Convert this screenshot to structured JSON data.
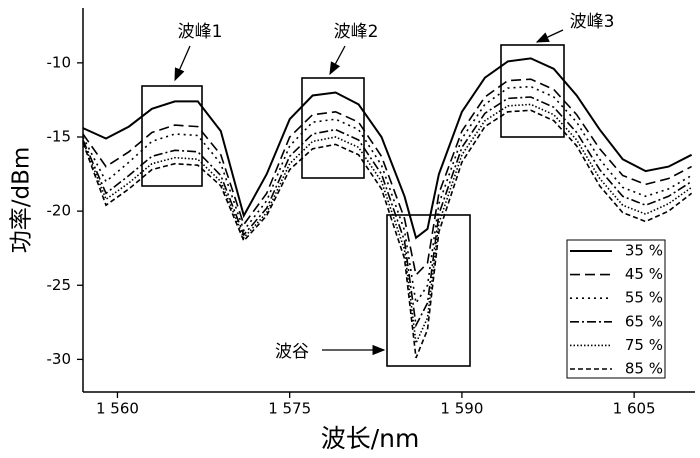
{
  "chart_data": {
    "type": "line",
    "x_label": "波长/nm",
    "y_label": "功率/dBm",
    "x": [
      1557,
      1559,
      1561,
      1563,
      1565,
      1567,
      1569,
      1571,
      1573,
      1575,
      1577,
      1579,
      1581,
      1583,
      1585,
      1586,
      1587,
      1588,
      1590,
      1592,
      1594,
      1596,
      1598,
      1600,
      1602,
      1604,
      1606,
      1608,
      1610
    ],
    "series": [
      {
        "name": "35 %",
        "color": "#000000",
        "style": "solid",
        "values": [
          -14.4,
          -15.1,
          -14.3,
          -13.1,
          -12.6,
          -12.6,
          -14.6,
          -20.3,
          -17.5,
          -13.8,
          -12.2,
          -12.0,
          -12.8,
          -15.0,
          -19.0,
          -21.8,
          -21.2,
          -17.5,
          -13.3,
          -11.0,
          -9.9,
          -9.7,
          -10.4,
          -12.2,
          -14.5,
          -16.5,
          -17.3,
          -17.0,
          -16.2
        ]
      },
      {
        "name": "45 %",
        "color": "#000000",
        "style": "dashed",
        "values": [
          -14.8,
          -17.0,
          -16.0,
          -14.7,
          -14.2,
          -14.3,
          -16.2,
          -20.9,
          -18.8,
          -15.0,
          -13.5,
          -13.3,
          -14.0,
          -16.3,
          -20.5,
          -24.3,
          -23.5,
          -18.8,
          -14.6,
          -12.3,
          -11.2,
          -11.1,
          -11.8,
          -13.5,
          -15.8,
          -17.6,
          -18.2,
          -17.8,
          -17.0
        ]
      },
      {
        "name": "55 %",
        "color": "#000000",
        "style": "dotted",
        "values": [
          -15.0,
          -18.0,
          -16.7,
          -15.3,
          -14.8,
          -14.9,
          -16.8,
          -21.3,
          -19.3,
          -15.6,
          -14.0,
          -13.8,
          -14.5,
          -16.9,
          -21.3,
          -26.2,
          -25.0,
          -19.5,
          -15.1,
          -12.8,
          -11.7,
          -11.6,
          -12.3,
          -14.0,
          -16.5,
          -18.4,
          -19.0,
          -18.5,
          -17.6
        ]
      },
      {
        "name": "65 %",
        "color": "#000000",
        "style": "dashdot",
        "values": [
          -15.2,
          -18.8,
          -17.6,
          -16.3,
          -15.9,
          -16.0,
          -17.6,
          -21.6,
          -19.8,
          -16.3,
          -14.8,
          -14.5,
          -15.2,
          -17.5,
          -22.0,
          -27.7,
          -26.2,
          -20.2,
          -15.7,
          -13.4,
          -12.4,
          -12.3,
          -13.0,
          -14.7,
          -17.2,
          -19.0,
          -19.6,
          -19.0,
          -18.0
        ]
      },
      {
        "name": "75 %",
        "color": "#000000",
        "style": "densedot",
        "values": [
          -15.3,
          -19.2,
          -18.1,
          -16.8,
          -16.4,
          -16.5,
          -18.0,
          -21.8,
          -20.1,
          -16.8,
          -15.3,
          -15.0,
          -15.7,
          -18.0,
          -22.6,
          -28.9,
          -27.2,
          -20.8,
          -16.2,
          -13.9,
          -12.9,
          -12.8,
          -13.5,
          -15.2,
          -17.8,
          -19.6,
          -20.2,
          -19.5,
          -18.4
        ]
      },
      {
        "name": "85 %",
        "color": "#000000",
        "style": "shortdash",
        "values": [
          -15.4,
          -19.6,
          -18.5,
          -17.2,
          -16.8,
          -16.9,
          -18.3,
          -22.0,
          -20.3,
          -17.2,
          -15.8,
          -15.5,
          -16.2,
          -18.5,
          -23.2,
          -29.9,
          -28.0,
          -21.4,
          -16.7,
          -14.3,
          -13.3,
          -13.2,
          -13.9,
          -15.6,
          -18.3,
          -20.1,
          -20.7,
          -20.0,
          -18.8
        ]
      }
    ],
    "xlim": [
      1557,
      1610.3
    ],
    "xticks": [
      {
        "value": 1560,
        "label": "1 560"
      },
      {
        "value": 1575,
        "label": "1 575"
      },
      {
        "value": 1590,
        "label": "1 590"
      },
      {
        "value": 1605,
        "label": "1 605"
      }
    ],
    "ylim": [
      -32.2,
      -6.3
    ],
    "yticks": [
      -10,
      -15,
      -20,
      -25,
      -30
    ],
    "grid": false,
    "legend": "lower right",
    "annotations": [
      "波峰1",
      "波峰2",
      "波峰3",
      "波谷"
    ]
  }
}
